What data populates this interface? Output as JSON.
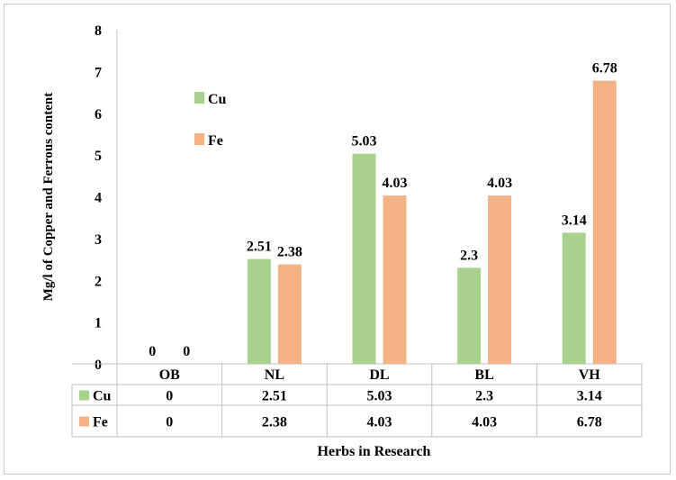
{
  "chart_data": {
    "type": "bar",
    "categories": [
      "OB",
      "NL",
      "DL",
      "BL",
      "VH"
    ],
    "series": [
      {
        "name": "Cu",
        "values": [
          0,
          2.51,
          5.03,
          2.3,
          3.14
        ],
        "labels": [
          "0",
          "2.51",
          "5.03",
          "2.3",
          "3.14"
        ],
        "color": "#a9d18e"
      },
      {
        "name": "Fe",
        "values": [
          0,
          2.38,
          4.03,
          4.03,
          6.78
        ],
        "labels": [
          "0",
          "2.38",
          "4.03",
          "4.03",
          "6.78"
        ],
        "color": "#f4b183"
      }
    ],
    "ylim": [
      0,
      8
    ],
    "yticks": [
      "0",
      "1",
      "2",
      "3",
      "4",
      "5",
      "6",
      "7",
      "8"
    ],
    "title": "",
    "xlabel": "Herbs in Research",
    "ylabel": "Mg/l of Copper and Ferrous content",
    "grid": false,
    "legend_position": "top-left inside plot",
    "data_table": true
  }
}
